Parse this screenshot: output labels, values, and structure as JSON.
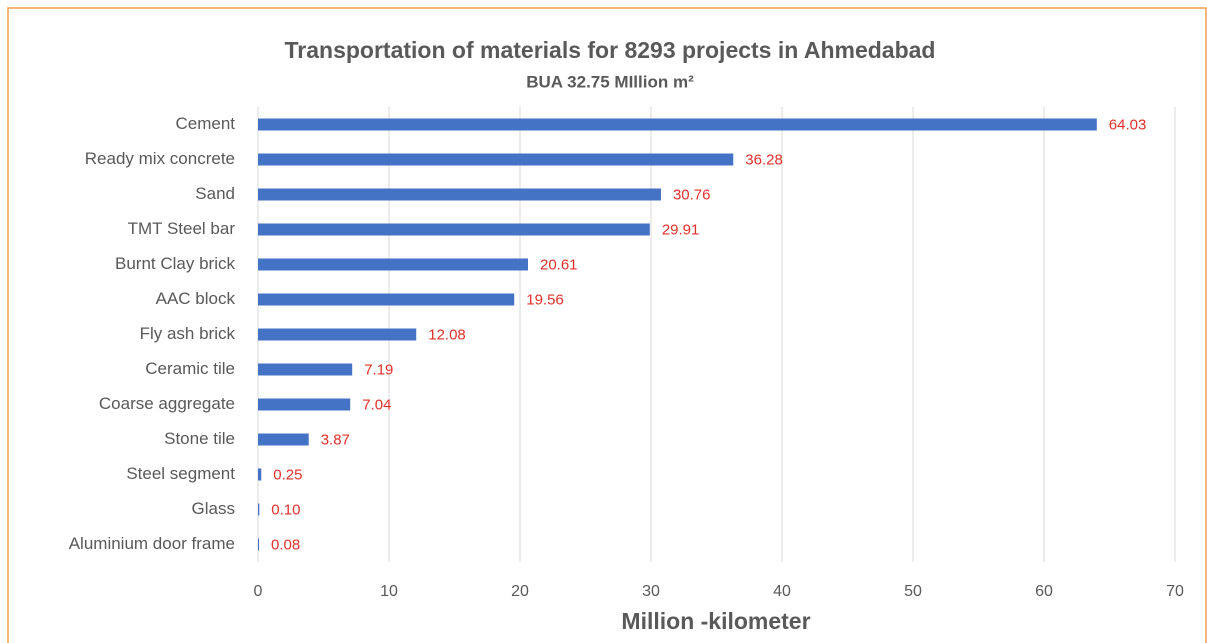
{
  "chart_data": {
    "type": "bar",
    "orientation": "horizontal",
    "title": "Transportation of materials for 8293 projects in Ahmedabad",
    "subtitle": "BUA 32.75 MIllion m²",
    "x_label": "Million -kilometer",
    "categories": [
      "Cement",
      "Ready mix concrete",
      "Sand",
      "TMT Steel bar",
      "Burnt Clay brick",
      "AAC block",
      "Fly ash brick",
      "Ceramic tile",
      "Coarse aggregate",
      "Stone tile",
      "Steel segment",
      "Glass",
      "Aluminium door frame"
    ],
    "values": [
      64.03,
      36.28,
      30.76,
      29.91,
      20.61,
      19.56,
      12.08,
      7.19,
      7.04,
      3.87,
      0.25,
      0.1,
      0.08
    ],
    "value_labels": [
      "64.03",
      "36.28",
      "30.76",
      "29.91",
      "20.61",
      "19.56",
      "12.08",
      "7.19",
      "7.04",
      "3.87",
      "0.25",
      "0.10",
      "0.08"
    ],
    "color": "#4472c4",
    "label_color": "#e0302a",
    "xlim": [
      0,
      70
    ],
    "xticks": [
      0,
      10,
      20,
      30,
      40,
      50,
      60,
      70
    ],
    "grid": true
  }
}
